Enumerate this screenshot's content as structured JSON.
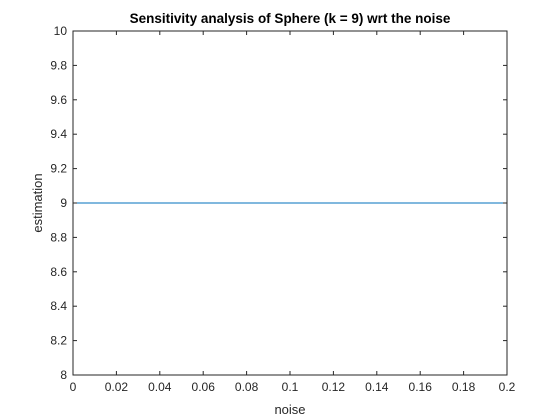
{
  "chart_data": {
    "type": "line",
    "title": "Sensitivity analysis of Sphere (k = 9) wrt the noise",
    "xlabel": "noise",
    "ylabel": "estimation",
    "xlim": [
      0,
      0.2
    ],
    "ylim": [
      8,
      10
    ],
    "xticks": [
      0,
      0.02,
      0.04,
      0.06,
      0.08,
      0.1,
      0.12,
      0.14,
      0.16,
      0.18,
      0.2
    ],
    "xtick_labels": [
      "0",
      "0.02",
      "0.04",
      "0.06",
      "0.08",
      "0.1",
      "0.12",
      "0.14",
      "0.16",
      "0.18",
      "0.2"
    ],
    "yticks": [
      8,
      8.2,
      8.4,
      8.6,
      8.8,
      9,
      9.2,
      9.4,
      9.6,
      9.8,
      10
    ],
    "ytick_labels": [
      "8",
      "8.2",
      "8.4",
      "8.6",
      "8.8",
      "9",
      "9.2",
      "9.4",
      "9.6",
      "9.8",
      "10"
    ],
    "grid": false,
    "series": [
      {
        "name": "estimation",
        "color": "#0072BD",
        "x": [
          0,
          0.02,
          0.04,
          0.06,
          0.08,
          0.1,
          0.12,
          0.14,
          0.16,
          0.18,
          0.2
        ],
        "y": [
          9,
          9,
          9,
          9,
          9,
          9,
          9,
          9,
          9,
          9,
          9
        ]
      }
    ]
  }
}
